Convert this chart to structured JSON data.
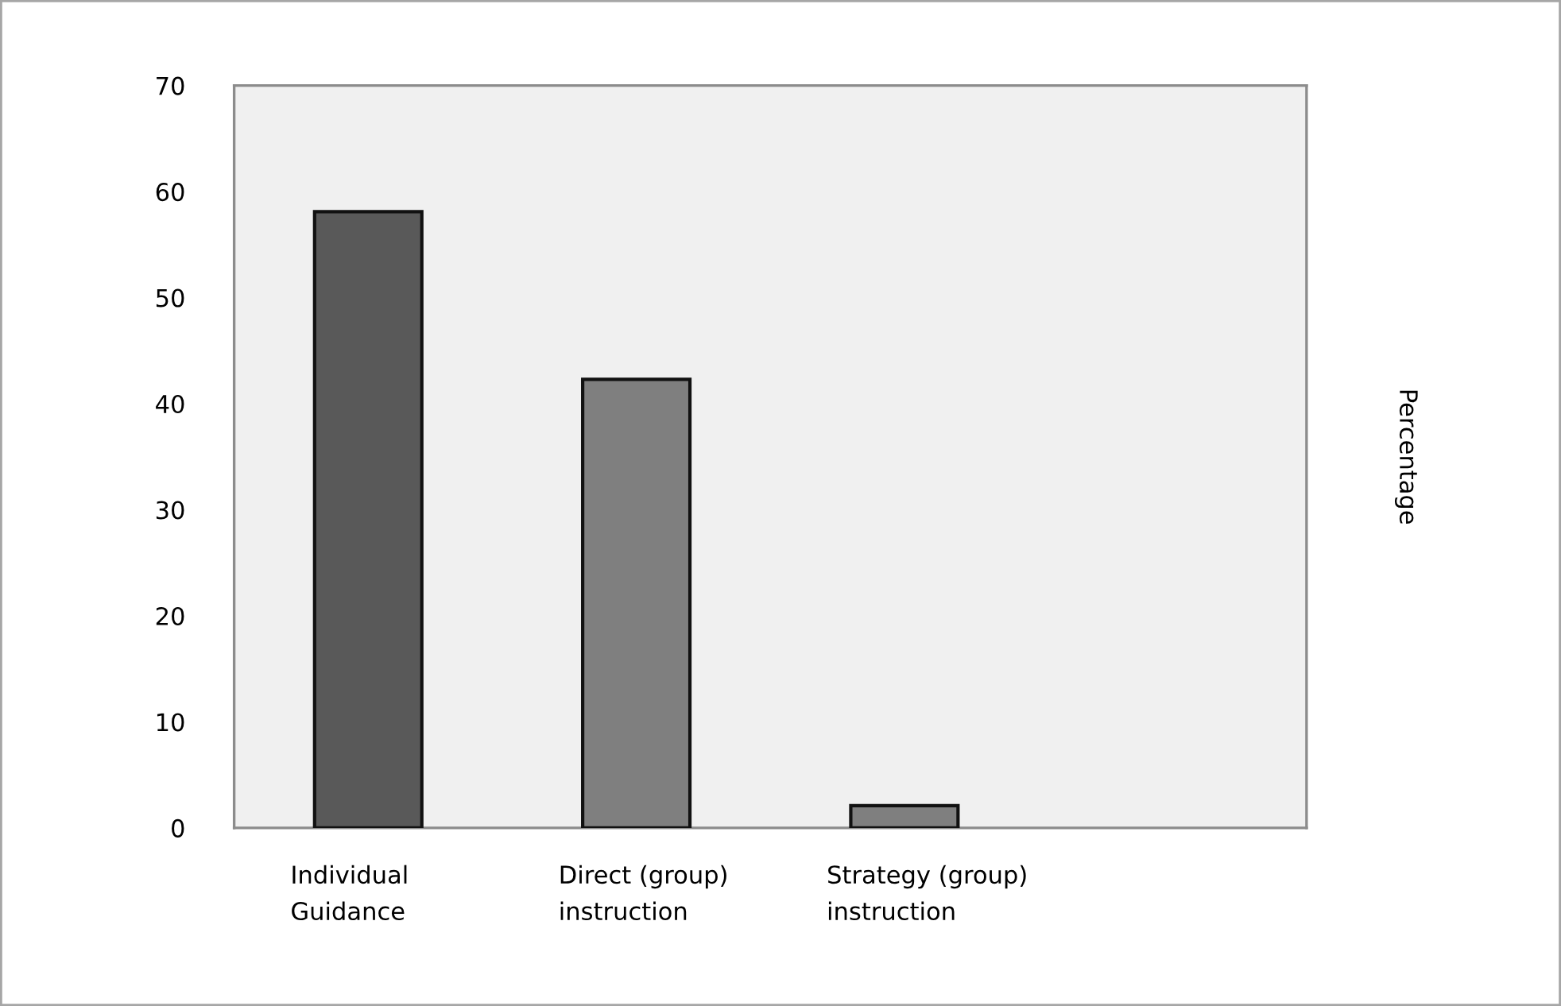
{
  "chart_data": {
    "type": "bar",
    "categories": [
      "Individual\nGuidance",
      "Direct (group)\ninstruction",
      "Strategy (group)\ninstruction",
      null
    ],
    "values": [
      58.1,
      42.3,
      2.1,
      null
    ],
    "colors": [
      "#595959",
      "#7f7f7f",
      "#7f7f7f",
      "#7f7f7f"
    ],
    "ylabel": "Percentage",
    "ylim": [
      0,
      70
    ],
    "yticks": [
      0,
      10,
      20,
      30,
      40,
      50,
      60,
      70
    ],
    "grid": false,
    "legend": false
  }
}
